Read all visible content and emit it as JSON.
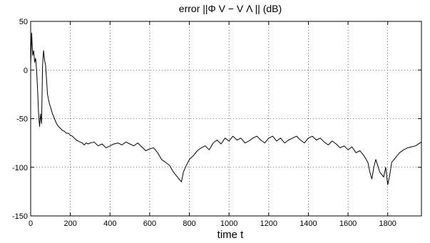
{
  "chart_data": {
    "type": "line",
    "title": "error ||Φ V − V Λ || (dB)",
    "xlabel": "time t",
    "ylabel": "",
    "xlim": [
      0,
      1970
    ],
    "ylim": [
      -150,
      50
    ],
    "x_ticks": [
      0,
      200,
      400,
      600,
      800,
      1000,
      1200,
      1400,
      1600,
      1800
    ],
    "y_ticks": [
      50,
      0,
      -50,
      -100,
      -150
    ],
    "grid": true,
    "series": [
      {
        "color": "#000000",
        "x": [
          0,
          5,
          10,
          15,
          20,
          25,
          30,
          35,
          40,
          45,
          50,
          55,
          60,
          65,
          70,
          75,
          80,
          85,
          90,
          95,
          100,
          110,
          120,
          130,
          140,
          150,
          160,
          170,
          180,
          190,
          200,
          210,
          220,
          230,
          240,
          250,
          260,
          270,
          280,
          290,
          300,
          320,
          340,
          360,
          380,
          400,
          420,
          440,
          460,
          480,
          500,
          520,
          540,
          560,
          580,
          600,
          620,
          640,
          660,
          680,
          700,
          720,
          740,
          760,
          770,
          780,
          800,
          820,
          840,
          860,
          880,
          900,
          920,
          940,
          960,
          980,
          1000,
          1020,
          1040,
          1060,
          1080,
          1100,
          1120,
          1140,
          1160,
          1180,
          1200,
          1220,
          1240,
          1260,
          1280,
          1300,
          1320,
          1340,
          1360,
          1380,
          1400,
          1420,
          1440,
          1460,
          1480,
          1500,
          1520,
          1540,
          1560,
          1580,
          1600,
          1620,
          1640,
          1660,
          1680,
          1700,
          1710,
          1720,
          1730,
          1740,
          1760,
          1780,
          1790,
          1800,
          1810,
          1820,
          1840,
          1860,
          1880,
          1900,
          1920,
          1940,
          1970
        ],
        "y": [
          5,
          38,
          15,
          20,
          8,
          12,
          0,
          -20,
          -45,
          -58,
          -45,
          -55,
          5,
          20,
          10,
          5,
          -10,
          -25,
          -30,
          -35,
          -38,
          -45,
          -50,
          -55,
          -58,
          -60,
          -62,
          -63,
          -65,
          -65,
          -67,
          -68,
          -70,
          -72,
          -73,
          -74,
          -75,
          -77,
          -75,
          -76,
          -75,
          -74,
          -78,
          -76,
          -80,
          -78,
          -76,
          -75,
          -77,
          -74,
          -76,
          -78,
          -75,
          -79,
          -83,
          -81,
          -80,
          -85,
          -92,
          -95,
          -98,
          -105,
          -110,
          -115,
          -105,
          -100,
          -92,
          -88,
          -83,
          -80,
          -78,
          -82,
          -75,
          -72,
          -76,
          -70,
          -73,
          -68,
          -72,
          -70,
          -75,
          -73,
          -70,
          -68,
          -72,
          -75,
          -70,
          -68,
          -73,
          -70,
          -75,
          -72,
          -70,
          -68,
          -72,
          -75,
          -70,
          -68,
          -72,
          -70,
          -74,
          -77,
          -73,
          -76,
          -80,
          -78,
          -82,
          -79,
          -85,
          -83,
          -88,
          -95,
          -105,
          -112,
          -100,
          -92,
          -105,
          -110,
          -100,
          -118,
          -108,
          -95,
          -90,
          -85,
          -82,
          -80,
          -79,
          -78,
          -74
        ]
      }
    ]
  }
}
